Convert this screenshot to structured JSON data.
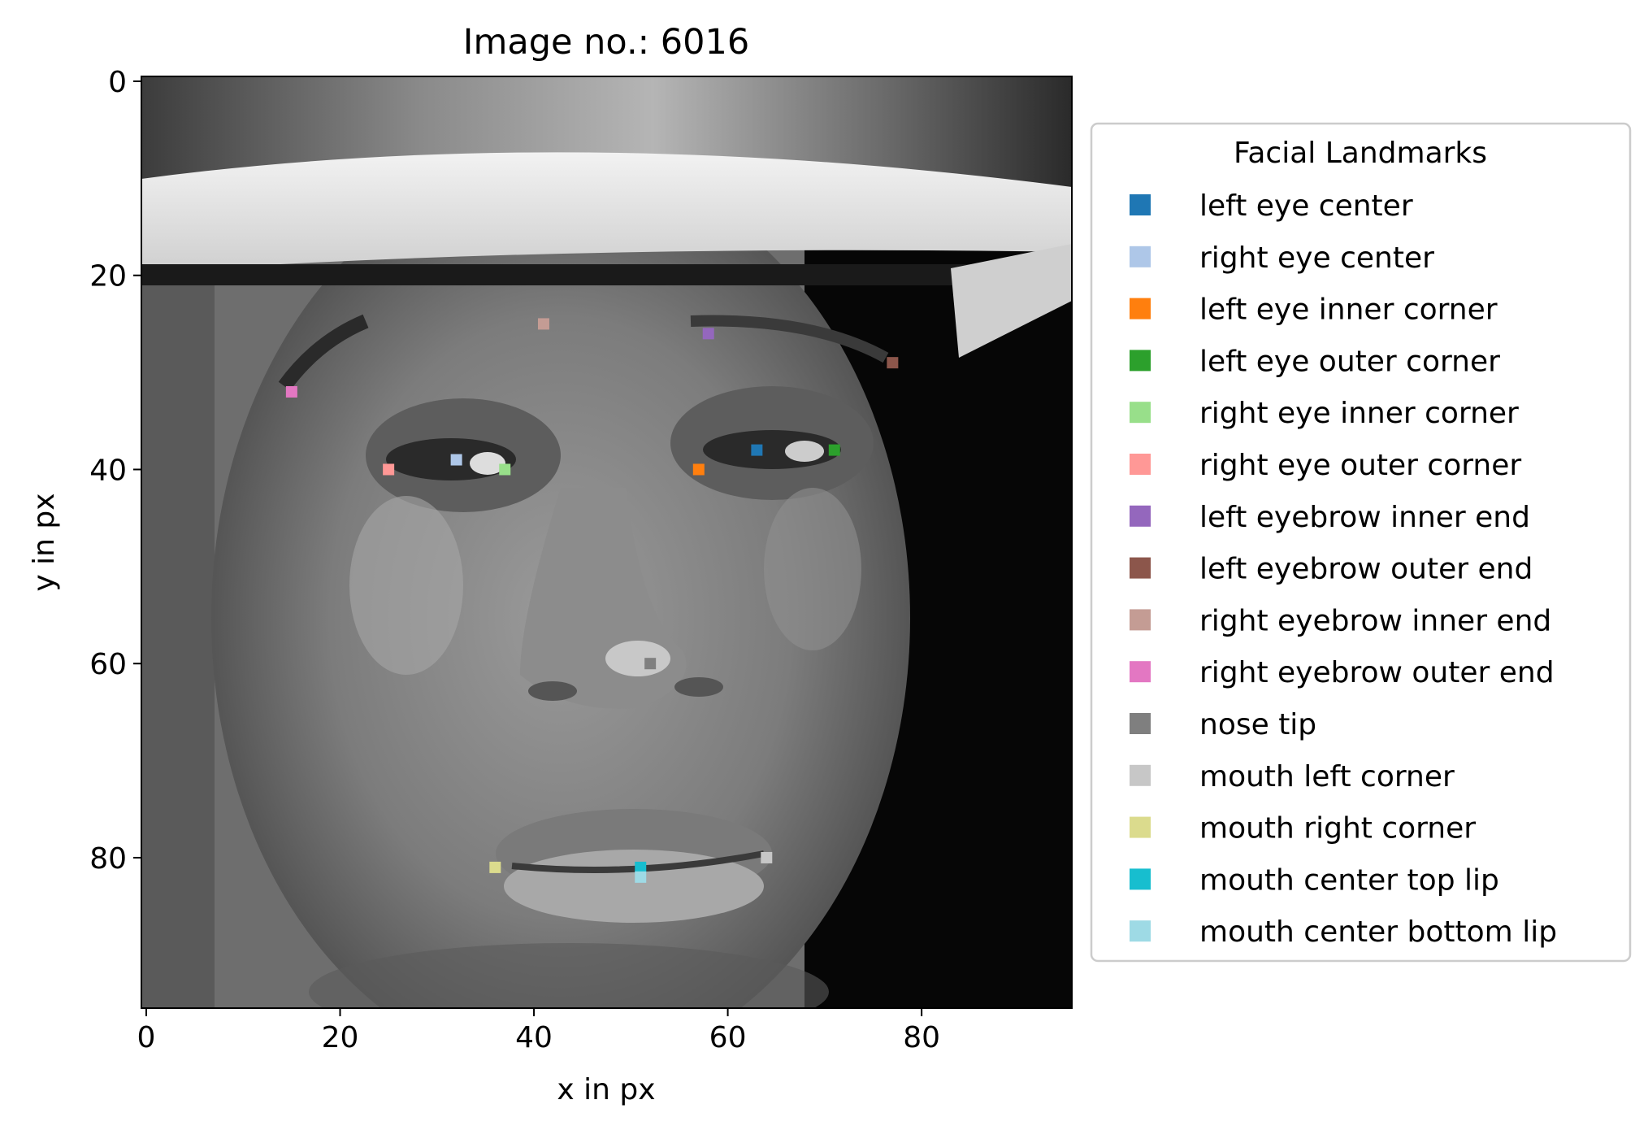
{
  "chart_data": {
    "type": "scatter",
    "title": "Image no.: 6016",
    "xlabel": "x in px",
    "ylabel": "y in px",
    "xlim": [
      0,
      96
    ],
    "ylim": [
      96,
      0
    ],
    "x_ticks": [
      0,
      20,
      40,
      60,
      80
    ],
    "y_ticks": [
      0,
      20,
      40,
      60,
      80
    ],
    "grid": false,
    "background": "grayscale face photograph (96x96 px) with a white-brimmed hat",
    "legend": {
      "title": "Facial Landmarks",
      "placement": "outside-right"
    },
    "series": [
      {
        "name": "left eye center",
        "x": 63,
        "y": 38,
        "color": "#1f77b4"
      },
      {
        "name": "right eye center",
        "x": 32,
        "y": 39,
        "color": "#aec7e8"
      },
      {
        "name": "left eye inner corner",
        "x": 57,
        "y": 40,
        "color": "#ff7f0e"
      },
      {
        "name": "left eye outer corner",
        "x": 71,
        "y": 38,
        "color": "#2ca02c"
      },
      {
        "name": "right eye inner corner",
        "x": 37,
        "y": 40,
        "color": "#98df8a"
      },
      {
        "name": "right eye outer corner",
        "x": 25,
        "y": 40,
        "color": "#ff9896"
      },
      {
        "name": "left eyebrow inner end",
        "x": 58,
        "y": 26,
        "color": "#9467bd"
      },
      {
        "name": "left eyebrow outer end",
        "x": 77,
        "y": 29,
        "color": "#8c564b"
      },
      {
        "name": "right eyebrow inner end",
        "x": 41,
        "y": 25,
        "color": "#c49c94"
      },
      {
        "name": "right eyebrow outer end",
        "x": 15,
        "y": 32,
        "color": "#e377c2"
      },
      {
        "name": "nose tip",
        "x": 52,
        "y": 60,
        "color": "#7f7f7f"
      },
      {
        "name": "mouth left corner",
        "x": 64,
        "y": 80,
        "color": "#c7c7c7"
      },
      {
        "name": "mouth right corner",
        "x": 36,
        "y": 81,
        "color": "#dbdb8d"
      },
      {
        "name": "mouth center top lip",
        "x": 51,
        "y": 81,
        "color": "#17becf"
      },
      {
        "name": "mouth center bottom lip",
        "x": 51,
        "y": 82,
        "color": "#9edae5"
      }
    ]
  }
}
